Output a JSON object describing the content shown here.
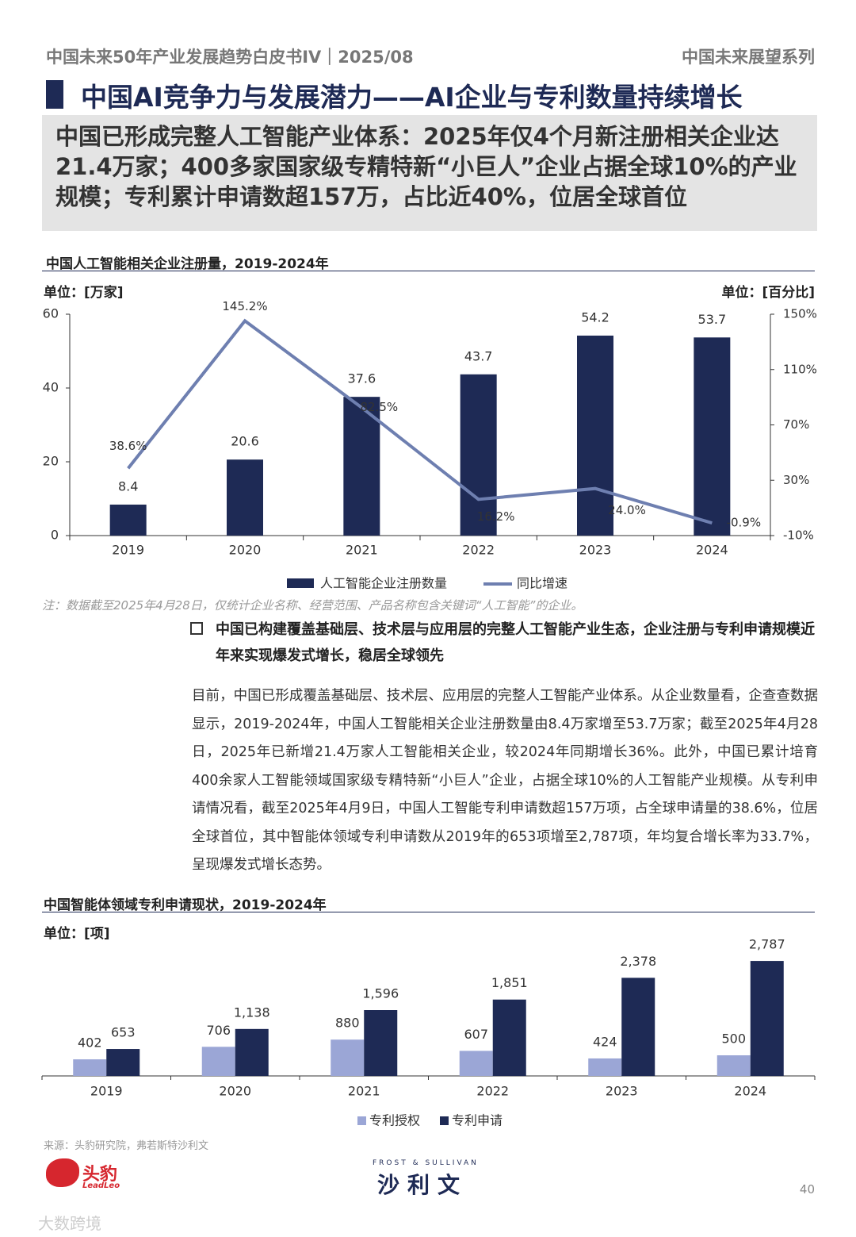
{
  "header": {
    "left": "中国未来50年产业发展趋势白皮书IV｜2025/08",
    "right": "中国未来展望系列"
  },
  "title": "中国AI竞争力与发展潜力——AI企业与专利数量持续增长",
  "summary": "中国已形成完整人工智能产业体系：2025年仅4个月新注册相关企业达21.4万家；400多家国家级专精特新“小巨人”企业占据全球10%的产业规模；专利累计申请数超157万，占比近40%，位居全球首位",
  "chart_data": [
    {
      "type": "combo",
      "title": "中国人工智能相关企业注册量，2019-2024年",
      "y_label": "单位：[万家]",
      "y2_label": "单位：[百分比]",
      "categories": [
        "2019",
        "2020",
        "2021",
        "2022",
        "2023",
        "2024"
      ],
      "series": [
        {
          "name": "人工智能企业注册数量",
          "type": "bar",
          "color": "#1e2a55",
          "values": [
            8.4,
            20.6,
            37.6,
            43.7,
            54.2,
            53.7
          ]
        },
        {
          "name": "同比增速",
          "type": "line",
          "axis": "y2",
          "color": "#6e7fb0",
          "values": [
            38.6,
            145.2,
            82.5,
            16.2,
            24.0,
            -0.9
          ],
          "value_labels": [
            "38.6%",
            "145.2%",
            "82.5%",
            "16.2%",
            "24.0%",
            "-0.9%"
          ]
        }
      ],
      "ylim": [
        0,
        60
      ],
      "yticks": [
        0,
        20,
        40,
        60
      ],
      "y2lim": [
        -10,
        150
      ],
      "y2ticks": [
        {
          "value": -10,
          "label": "-10%"
        },
        {
          "value": 30,
          "label": "30%"
        },
        {
          "value": 70,
          "label": "70%"
        },
        {
          "value": 110,
          "label": "110%"
        },
        {
          "value": 150,
          "label": "150%"
        }
      ],
      "note": "注：数据截至2025年4月28日，仅统计企业名称、经营范围、产品名称包含关键词“人工智能”的企业。"
    },
    {
      "type": "bar",
      "title": "中国智能体领域专利申请现状，2019-2024年",
      "y_label": "单位：[项]",
      "categories": [
        "2019",
        "2020",
        "2021",
        "2022",
        "2023",
        "2024"
      ],
      "series": [
        {
          "name": "专利授权",
          "color": "#9ba6d6",
          "values": [
            402,
            706,
            880,
            607,
            424,
            500
          ]
        },
        {
          "name": "专利申请",
          "color": "#1e2a55",
          "values": [
            653,
            1138,
            1596,
            1851,
            2378,
            2787
          ],
          "value_labels": [
            "653",
            "1,138",
            "1,596",
            "1,851",
            "2,378",
            "2,787"
          ]
        }
      ],
      "ylim": [
        0,
        3000
      ]
    }
  ],
  "bullet": "中国已构建覆盖基础层、技术层与应用层的完整人工智能产业生态，企业注册与专利申请规模近年来实现爆发式增长，稳居全球领先",
  "paragraph": "目前，中国已形成覆盖基础层、技术层、应用层的完整人工智能产业体系。从企业数量看，企查查数据显示，2019-2024年，中国人工智能相关企业注册数量由8.4万家增至53.7万家；截至2025年4月28日，2025年已新增21.4万家人工智能相关企业，较2024年同期增长36%。此外，中国已累计培育400余家人工智能领域国家级专精特新“小巨人”企业，占据全球10%的人工智能产业规模。从专利申请情况看，截至2025年4月9日，中国人工智能专利申请数超157万项，占全球申请量的38.6%，位居全球首位，其中智能体领域专利申请数从2019年的653项增至2,787项，年均复合增长率为33.7%，呈现爆发式增长态势。",
  "source": "来源：头豹研究院，弗若斯特沙利文",
  "footer": {
    "logo_left": "头豹",
    "logo_left_en": "LeadLeo",
    "logo_right_en": "FROST & SULLIVAN",
    "logo_right": "沙利文",
    "page": "40",
    "watermark": "大数跨境"
  }
}
